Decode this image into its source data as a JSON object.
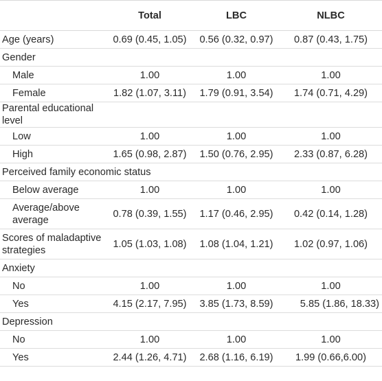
{
  "headers": [
    "",
    "Total",
    "LBC",
    "NLBC"
  ],
  "rows": [
    {
      "label": "Age (years)",
      "total": "0.69 (0.45, 1.05)",
      "lbc": "0.56 (0.32, 0.97)",
      "nlbc": "0.87 (0.43, 1.75)"
    },
    {
      "label": "Gender",
      "total": "",
      "lbc": "",
      "nlbc": ""
    },
    {
      "label": "Male",
      "total": "1.00",
      "lbc": "1.00",
      "nlbc": "1.00"
    },
    {
      "label": "Female",
      "total": "1.82 (1.07, 3.11)",
      "lbc": "1.79 (0.91, 3.54)",
      "nlbc": "1.74 (0.71, 4.29)"
    },
    {
      "label": "Parental educational level",
      "total": "",
      "lbc": "",
      "nlbc": ""
    },
    {
      "label": "Low",
      "total": "1.00",
      "lbc": "1.00",
      "nlbc": "1.00"
    },
    {
      "label": "High",
      "total": "1.65 (0.98, 2.87)",
      "lbc": "1.50 (0.76, 2.95)",
      "nlbc": "2.33 (0.87, 6.28)"
    },
    {
      "label": "Perceived family economic status",
      "total": "",
      "lbc": "",
      "nlbc": ""
    },
    {
      "label": "Below average",
      "total": "1.00",
      "lbc": "1.00",
      "nlbc": "1.00"
    },
    {
      "label": "Average/above average",
      "total": "0.78 (0.39, 1.55)",
      "lbc": "1.17 (0.46, 2.95)",
      "nlbc": "0.42 (0.14, 1.28)"
    },
    {
      "label": "Scores of maladaptive strategies",
      "total": "1.05 (1.03, 1.08)",
      "lbc": "1.08 (1.04, 1.21)",
      "nlbc": "1.02 (0.97, 1.06)"
    },
    {
      "label": "Anxiety",
      "total": "",
      "lbc": "",
      "nlbc": ""
    },
    {
      "label": "No",
      "total": "1.00",
      "lbc": "1.00",
      "nlbc": "1.00"
    },
    {
      "label": "Yes",
      "total": "4.15 (2.17, 7.95)",
      "lbc": "3.85 (1.73, 8.59)",
      "nlbc": "5.85 (1.86, 18.33)"
    },
    {
      "label": "Depression",
      "total": "",
      "lbc": "",
      "nlbc": ""
    },
    {
      "label": "No",
      "total": "1.00",
      "lbc": "1.00",
      "nlbc": "1.00"
    },
    {
      "label": "Yes",
      "total": "2.44 (1.26, 4.71)",
      "lbc": "2.68 (1.16, 6.19)",
      "nlbc": "1.99 (0.66,6.00)"
    }
  ]
}
